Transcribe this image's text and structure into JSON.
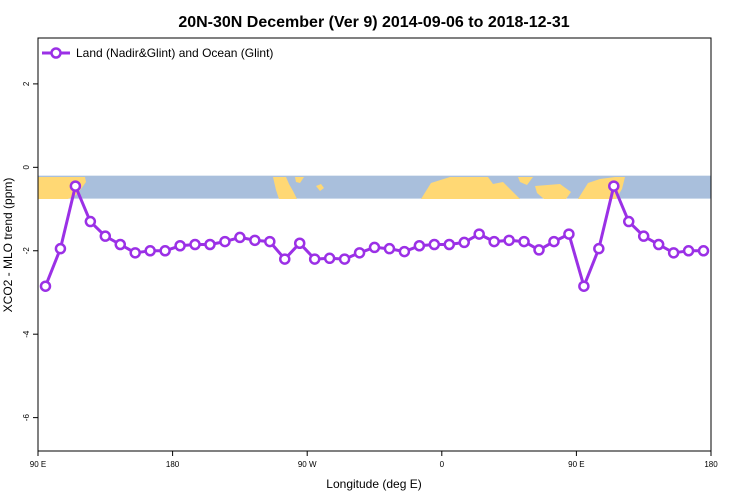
{
  "chart_data": {
    "type": "line",
    "title": "20N-30N December (Ver 9)   2014-09-06 to 2018-12-31",
    "xlabel": "Longitude (deg E)",
    "ylabel": "XCO2 - MLO trend (ppm)",
    "xlim": [
      90,
      540
    ],
    "ylim": [
      -6.8,
      3.1
    ],
    "x_ticks": [
      {
        "value": 90,
        "label": "90 E"
      },
      {
        "value": 180,
        "label": "180"
      },
      {
        "value": 270,
        "label": "90 W"
      },
      {
        "value": 360,
        "label": "0"
      },
      {
        "value": 450,
        "label": "90 E"
      },
      {
        "value": 540,
        "label": "180"
      }
    ],
    "y_ticks": [
      {
        "value": 2,
        "label": "2"
      },
      {
        "value": 0,
        "label": "0"
      },
      {
        "value": -2,
        "label": "-2"
      },
      {
        "value": -4,
        "label": "-4"
      },
      {
        "value": -6,
        "label": "-6"
      }
    ],
    "map_band": {
      "ymin": -0.75,
      "ymax": -0.2,
      "ocean_color": "#a9bfdc",
      "land_color": "#ffd874"
    },
    "series": [
      {
        "name": "Land (Nadir&Glint) and Ocean (Glint)",
        "color": "#9b30e6",
        "x": [
          95,
          105,
          115,
          125,
          135,
          145,
          155,
          165,
          175,
          185,
          195,
          205,
          215,
          225,
          235,
          245,
          255,
          265,
          275,
          285,
          295,
          305,
          315,
          325,
          335,
          345,
          355,
          365,
          375,
          385,
          395,
          405,
          415,
          425,
          435,
          445,
          455,
          465,
          475,
          485,
          495,
          505,
          515,
          525,
          535
        ],
        "y": [
          -2.85,
          -1.95,
          -0.45,
          -1.3,
          -1.65,
          -1.85,
          -2.05,
          -2.0,
          -2.0,
          -1.88,
          -1.85,
          -1.85,
          -1.78,
          -1.68,
          -1.75,
          -1.78,
          -2.2,
          -1.82,
          -2.2,
          -2.18,
          -2.2,
          -2.05,
          -1.92,
          -1.95,
          -2.02,
          -1.88,
          -1.85,
          -1.85,
          -1.8,
          -1.6,
          -1.78,
          -1.75,
          -1.78,
          -1.98,
          -1.78,
          -1.6,
          -2.85,
          -1.95,
          -0.45,
          -1.3,
          -1.65,
          -1.85,
          -2.05,
          -2.0,
          -2.0
        ]
      }
    ],
    "legend": {
      "placement": "top-left"
    }
  }
}
